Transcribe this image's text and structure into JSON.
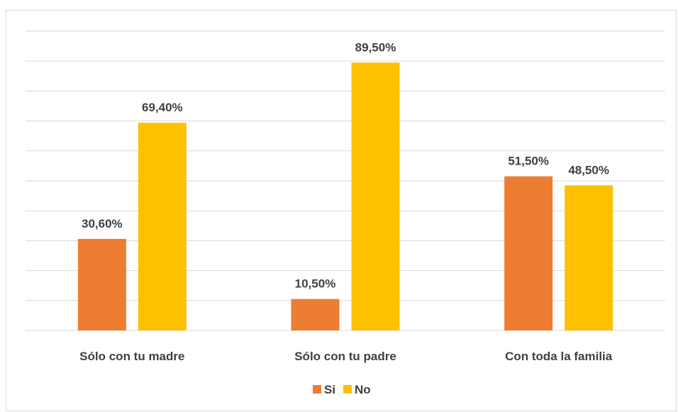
{
  "chart_data": {
    "type": "bar",
    "categories": [
      "Sólo con tu madre",
      "Sólo con tu padre",
      "Con toda la familia"
    ],
    "series": [
      {
        "name": "Si",
        "color": "#ED7D31",
        "values": [
          30.6,
          10.5,
          51.5
        ],
        "labels": [
          "30,60%",
          "10,50%",
          "51,50%"
        ]
      },
      {
        "name": "No",
        "color": "#FFC000",
        "values": [
          69.4,
          89.5,
          48.5
        ],
        "labels": [
          "69,40%",
          "89,50%",
          "48,50%"
        ]
      }
    ],
    "ylim": [
      0,
      100
    ],
    "grid": true,
    "legend_position": "bottom"
  }
}
